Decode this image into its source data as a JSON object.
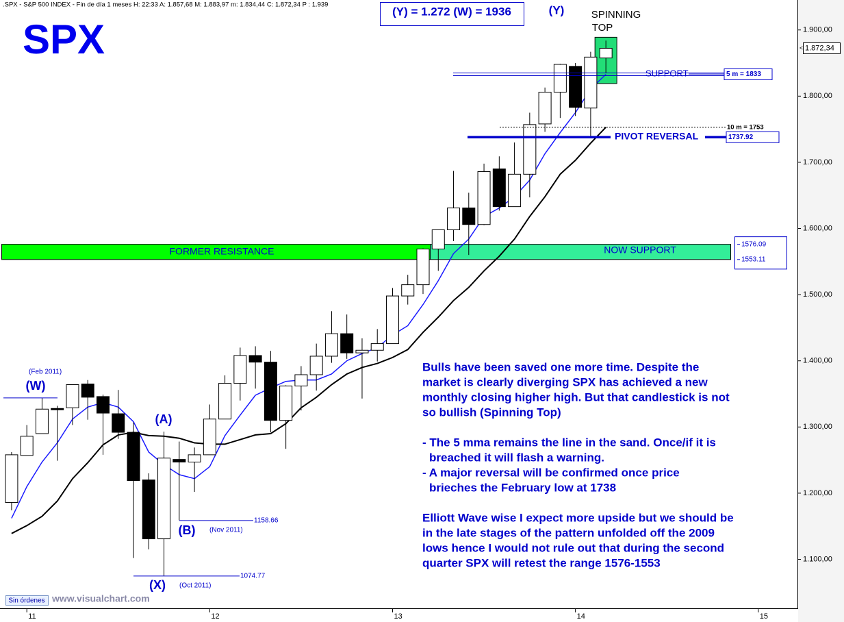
{
  "chart_data": {
    "type": "candlestick",
    "header": ".SPX - S&P 500 INDEX - Fin de día 1 meses  H: 22:33  A: 1.857,68  M: 1.883,97  m: 1.834,44  C: 1.872,34  P : 1.939",
    "title": "SPX",
    "categories": [
      null,
      null,
      null,
      null,
      null,
      null,
      null,
      null,
      null,
      null,
      null,
      null,
      null,
      null,
      null,
      null,
      null,
      null,
      null,
      null,
      null,
      null,
      null,
      null,
      null,
      null,
      null,
      null,
      null,
      null,
      null,
      null,
      null,
      null,
      null,
      null,
      null,
      null,
      null,
      null
    ],
    "open": [
      1186,
      1257,
      1290,
      1328,
      1329,
      1365,
      1346,
      1320,
      1292,
      1220,
      1131,
      1251,
      1247,
      1258,
      1312,
      1366,
      1408,
      1398,
      1310,
      1362,
      1379,
      1407,
      1441,
      1412,
      1416,
      1426,
      1498,
      1515,
      1569,
      1598,
      1631,
      1606,
      1690,
      1633,
      1682,
      1758,
      1806,
      1845,
      1782,
      1857.68
    ],
    "high": [
      1262,
      1303,
      1344,
      1332,
      1364,
      1371,
      1349,
      1356,
      1307,
      1230,
      1293,
      1278,
      1269,
      1334,
      1378,
      1420,
      1422,
      1415,
      1363,
      1392,
      1426,
      1475,
      1470,
      1434,
      1448,
      1510,
      1530,
      1570,
      1598,
      1687,
      1654,
      1698,
      1709,
      1730,
      1775,
      1813,
      1849,
      1850,
      1867,
      1883.97
    ],
    "low": [
      1174,
      1257,
      1290,
      1249,
      1303,
      1311,
      1258,
      1282,
      1102,
      1115,
      1075,
      1159,
      1202,
      1258,
      1312,
      1340,
      1358,
      1292,
      1267,
      1325,
      1355,
      1397,
      1403,
      1343,
      1399,
      1426,
      1485,
      1501,
      1536,
      1581,
      1560,
      1605,
      1627,
      1633,
      1647,
      1746,
      1767,
      1770,
      1738,
      1834.44
    ],
    "close": [
      1258,
      1286,
      1327,
      1326,
      1364,
      1345,
      1321,
      1292,
      1219,
      1131,
      1253,
      1247,
      1258,
      1312,
      1366,
      1408,
      1398,
      1310,
      1362,
      1379,
      1407,
      1441,
      1412,
      1416,
      1426,
      1498,
      1515,
      1569,
      1598,
      1631,
      1606,
      1686,
      1633,
      1682,
      1757,
      1806,
      1848,
      1783,
      1859,
      1872.34
    ],
    "series": [
      {
        "color": "#1a1aff",
        "values": [
          1162,
          1210,
          1247,
          1276,
          1312,
          1330,
          1337,
          1330,
          1308,
          1262,
          1243,
          1228,
          1222,
          1240,
          1287,
          1318,
          1348,
          1359,
          1369,
          1371,
          1371,
          1380,
          1400,
          1411,
          1420,
          1439,
          1453,
          1485,
          1521,
          1562,
          1584,
          1618,
          1631,
          1648,
          1673,
          1713,
          1745,
          1775,
          1811,
          1833
        ]
      },
      {
        "color": "#000000",
        "values": [
          1139,
          1151,
          1165,
          1188,
          1222,
          1246,
          1273,
          1288,
          1292,
          1287,
          1286,
          1283,
          1276,
          1274,
          1274,
          1281,
          1288,
          1290,
          1305,
          1329,
          1345,
          1364,
          1380,
          1390,
          1396,
          1405,
          1417,
          1443,
          1466,
          1491,
          1511,
          1536,
          1558,
          1584,
          1618,
          1648,
          1682,
          1703,
          1729,
          1753
        ]
      }
    ],
    "xlim": [
      -0.76,
      51.57
    ],
    "xticks": [
      {
        "value": 1,
        "label": "11"
      },
      {
        "value": 13,
        "label": "12"
      },
      {
        "value": 25,
        "label": "13"
      },
      {
        "value": 37,
        "label": "14"
      },
      {
        "value": 49,
        "label": "15"
      }
    ],
    "ylim": [
      1026,
      1937
    ],
    "yticks": [
      {
        "value": 1100,
        "label": "1.100,00"
      },
      {
        "value": 1200,
        "label": "1.200,00"
      },
      {
        "value": 1300,
        "label": "1.300,00"
      },
      {
        "value": 1400,
        "label": "1.400,00"
      },
      {
        "value": 1500,
        "label": "1.500,00"
      },
      {
        "value": 1600,
        "label": "1.600,00"
      },
      {
        "value": 1700,
        "label": "1.700,00"
      },
      {
        "value": 1800,
        "label": "1.800,00"
      },
      {
        "value": 1900,
        "label": "1.900,00"
      }
    ],
    "last_price": {
      "value": 1872.34,
      "label": "1.872,34"
    },
    "highlight_range": [
      1819,
      1889
    ],
    "levels": [
      {
        "value": 1833,
        "label": "5 m = 1833"
      },
      {
        "value": 1753,
        "label": "10 m = 1753"
      },
      {
        "value": 1737.92,
        "label": "1737.92"
      },
      {
        "value": 1576.09,
        "label": "1576.09"
      },
      {
        "value": 1553.11,
        "label": "1553.11"
      },
      {
        "value": 1158.66,
        "label": "1158.66"
      },
      {
        "value": 1074.77,
        "label": "1074.77"
      },
      {
        "value": 1344
      }
    ],
    "annotations": {
      "target": "(Y) = 1.272 (W) = 1936",
      "y_wave": "(Y)",
      "spinning": "SPINNING",
      "top": "TOP",
      "support": "SUPPORT",
      "pivot": "PIVOT REVERSAL",
      "former": "FORMER RESISTANCE",
      "now_support": "NOW SUPPORT",
      "feb": "(Feb 2011)",
      "w_wave": "(W)",
      "a_wave": "(A)",
      "b_wave": "(B)",
      "nov": "(Nov 2011)",
      "x_wave": "(X)",
      "oct": "(Oct 2011)",
      "orders": "Sin órdenes",
      "site": "www.visualchart.com"
    },
    "commentary": [
      [
        "Bulls have been saved one more time. Despite the",
        "market is clearly diverging SPX has achieved a new",
        "monthly closing higher high. But that candlestick is not",
        "so bullish (Spinning Top)"
      ],
      [
        "- The 5 mma remains the line in the sand. Once/if it is",
        "breached it will flash a warning.",
        "- A major reversal will be confirmed once price",
        "brieches the February low at 1738"
      ],
      [
        "Elliott Wave wise I expect more upside but we should be",
        "in the late stages of the pattern unfolded off the 2009",
        "lows hence I would not rule out that during the second",
        "quarter SPX will retest the range 1576-1553"
      ]
    ]
  }
}
